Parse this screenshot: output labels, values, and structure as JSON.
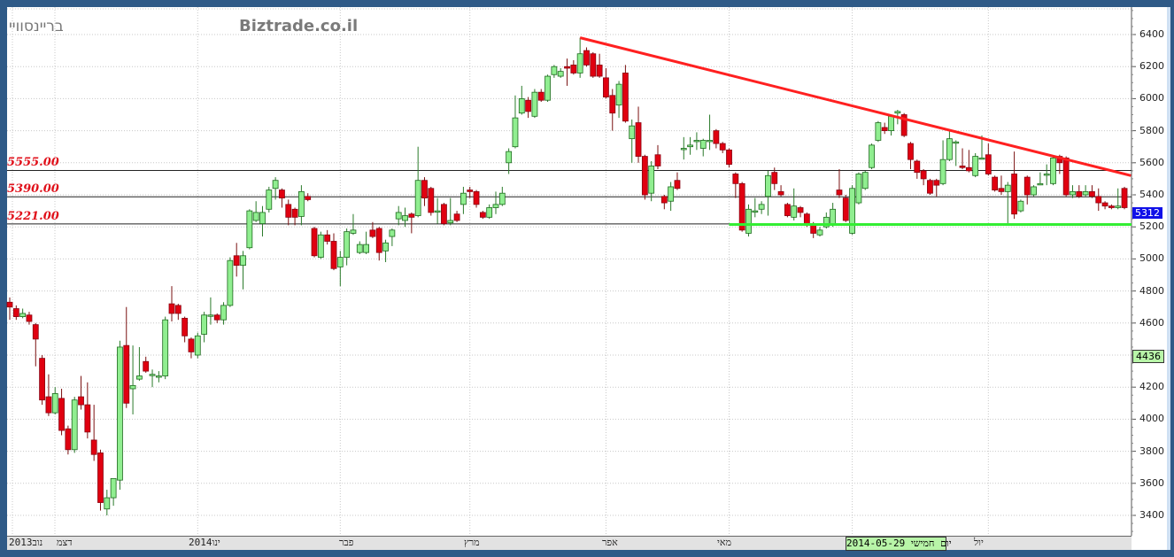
{
  "watermark": {
    "left": "בריינסוויי",
    "site": "Biztrade.co.il"
  },
  "colors": {
    "up": "#90ee90",
    "down": "#e00010",
    "trendline": "#ff2020",
    "support": "#33ee33",
    "frame": "#2f5a87"
  },
  "crosshair": {
    "price": "5312",
    "price2": "4436",
    "date": "יום חמישי 2014-05-29"
  },
  "chart_data": {
    "type": "candlestick",
    "ylim": [
      3300,
      6570
    ],
    "yticks": [
      3400,
      3600,
      3800,
      4000,
      4200,
      4400,
      4600,
      4800,
      5000,
      5200,
      5400,
      5600,
      5800,
      6000,
      6200,
      6400
    ],
    "ytick_labels": [
      "3400",
      "3600",
      "3800",
      "4000",
      "4200",
      "",
      "4600",
      "4800",
      "5000",
      "5200",
      "5400",
      "5600",
      "5800",
      "6000",
      "6200",
      "6400"
    ],
    "xtick_labels": [
      {
        "label": "2013נוב",
        "candle": 1
      },
      {
        "label": "דצמ",
        "candle": 6
      },
      {
        "label": "2014ינו",
        "candle": 30
      },
      {
        "label": "פבר",
        "candle": 53
      },
      {
        "label": "מרץ",
        "candle": 73
      },
      {
        "label": "אפר",
        "candle": 94
      },
      {
        "label": "מאי",
        "candle": 112
      },
      {
        "label": "יול",
        "candle": 152
      }
    ],
    "month_gridlines": [
      8,
      30,
      52,
      72,
      93,
      112,
      131,
      152
    ],
    "levels": [
      {
        "value": 5555,
        "label": "5555.00"
      },
      {
        "value": 5390,
        "label": "5390.00"
      },
      {
        "value": 5221,
        "label": "5221.00"
      }
    ],
    "trendline": {
      "from": {
        "candle": 89,
        "price": 6380
      },
      "to": {
        "candle": 174,
        "price": 5520
      }
    },
    "support_line": {
      "from": {
        "candle": 112,
        "price": 5215
      },
      "to": {
        "candle": 174,
        "price": 5215
      }
    },
    "ohlc": [
      [
        4730,
        4760,
        4620,
        4700
      ],
      [
        4690,
        4710,
        4620,
        4640
      ],
      [
        4640,
        4690,
        4630,
        4660
      ],
      [
        4650,
        4670,
        4590,
        4610
      ],
      [
        4590,
        4600,
        4330,
        4500
      ],
      [
        4380,
        4400,
        4090,
        4120
      ],
      [
        4140,
        4280,
        4020,
        4040
      ],
      [
        4040,
        4200,
        4030,
        4160
      ],
      [
        4130,
        4190,
        3900,
        3930
      ],
      [
        3940,
        3960,
        3780,
        3810
      ],
      [
        3810,
        4140,
        3790,
        4120
      ],
      [
        4140,
        4270,
        4060,
        4090
      ],
      [
        4090,
        4230,
        3880,
        3920
      ],
      [
        3870,
        4090,
        3740,
        3780
      ],
      [
        3790,
        3810,
        3430,
        3480
      ],
      [
        3440,
        3560,
        3400,
        3510
      ],
      [
        3510,
        3630,
        3460,
        3630
      ],
      [
        3620,
        4490,
        3560,
        4450
      ],
      [
        4460,
        4700,
        4070,
        4100
      ],
      [
        4190,
        4460,
        4030,
        4210
      ],
      [
        4250,
        4450,
        4240,
        4270
      ],
      [
        4360,
        4390,
        4290,
        4300
      ],
      [
        4280,
        4310,
        4200,
        4280
      ],
      [
        4270,
        4300,
        4230,
        4270
      ],
      [
        4270,
        4640,
        4250,
        4620
      ],
      [
        4720,
        4830,
        4610,
        4660
      ],
      [
        4710,
        4720,
        4620,
        4660
      ],
      [
        4630,
        4640,
        4480,
        4520
      ],
      [
        4500,
        4510,
        4380,
        4420
      ],
      [
        4400,
        4540,
        4380,
        4520
      ],
      [
        4530,
        4670,
        4480,
        4650
      ],
      [
        4650,
        4760,
        4590,
        4650
      ],
      [
        4650,
        4660,
        4600,
        4620
      ],
      [
        4620,
        4730,
        4590,
        4710
      ],
      [
        4710,
        5010,
        4700,
        4990
      ],
      [
        5020,
        5100,
        4890,
        4960
      ],
      [
        4960,
        5050,
        4810,
        5020
      ],
      [
        5070,
        5310,
        5060,
        5300
      ],
      [
        5240,
        5360,
        5230,
        5290
      ],
      [
        5220,
        5330,
        5140,
        5290
      ],
      [
        5310,
        5450,
        5290,
        5430
      ],
      [
        5440,
        5510,
        5370,
        5490
      ],
      [
        5430,
        5440,
        5320,
        5380
      ],
      [
        5340,
        5370,
        5210,
        5260
      ],
      [
        5310,
        5320,
        5210,
        5260
      ],
      [
        5265,
        5460,
        5210,
        5420
      ],
      [
        5390,
        5410,
        5360,
        5370
      ],
      [
        5190,
        5200,
        5010,
        5020
      ],
      [
        5010,
        5170,
        5000,
        5150
      ],
      [
        5150,
        5180,
        5090,
        5110
      ],
      [
        5110,
        5160,
        4930,
        4940
      ],
      [
        4950,
        5050,
        4830,
        5010
      ],
      [
        5010,
        5190,
        4960,
        5170
      ],
      [
        5160,
        5280,
        5150,
        5180
      ],
      [
        5040,
        5110,
        5030,
        5090
      ],
      [
        5040,
        5170,
        5030,
        5090
      ],
      [
        5180,
        5230,
        5130,
        5140
      ],
      [
        5190,
        5200,
        4990,
        5040
      ],
      [
        5050,
        5120,
        4980,
        5100
      ],
      [
        5140,
        5190,
        5080,
        5180
      ],
      [
        5250,
        5330,
        5210,
        5290
      ],
      [
        5240,
        5320,
        5200,
        5270
      ],
      [
        5280,
        5290,
        5160,
        5260
      ],
      [
        5270,
        5700,
        5260,
        5490
      ],
      [
        5490,
        5510,
        5330,
        5380
      ],
      [
        5440,
        5450,
        5270,
        5290
      ],
      [
        5300,
        5380,
        5220,
        5300
      ],
      [
        5340,
        5350,
        5210,
        5220
      ],
      [
        5225,
        5380,
        5210,
        5240
      ],
      [
        5280,
        5300,
        5230,
        5240
      ],
      [
        5340,
        5450,
        5280,
        5410
      ],
      [
        5430,
        5450,
        5380,
        5420
      ],
      [
        5420,
        5430,
        5320,
        5340
      ],
      [
        5290,
        5300,
        5250,
        5260
      ],
      [
        5260,
        5340,
        5250,
        5320
      ],
      [
        5320,
        5420,
        5280,
        5340
      ],
      [
        5340,
        5450,
        5330,
        5410
      ],
      [
        5600,
        5690,
        5530,
        5670
      ],
      [
        5700,
        6020,
        5690,
        5880
      ],
      [
        5910,
        6080,
        5900,
        6000
      ],
      [
        5990,
        6010,
        5880,
        5920
      ],
      [
        5890,
        6060,
        5880,
        6040
      ],
      [
        6040,
        6060,
        5980,
        5990
      ],
      [
        5990,
        6150,
        5980,
        6140
      ],
      [
        6150,
        6210,
        6130,
        6200
      ],
      [
        6140,
        6190,
        6130,
        6170
      ],
      [
        6200,
        6250,
        6080,
        6190
      ],
      [
        6210,
        6240,
        6150,
        6160
      ],
      [
        6160,
        6380,
        6130,
        6280
      ],
      [
        6300,
        6320,
        6200,
        6210
      ],
      [
        6280,
        6290,
        6130,
        6140
      ],
      [
        6210,
        6280,
        6130,
        6140
      ],
      [
        6130,
        6190,
        6000,
        6010
      ],
      [
        6020,
        6060,
        5800,
        5910
      ],
      [
        5960,
        6110,
        5880,
        6090
      ],
      [
        6160,
        6210,
        5850,
        5860
      ],
      [
        5750,
        5870,
        5600,
        5830
      ],
      [
        5850,
        5950,
        5600,
        5640
      ],
      [
        5640,
        5650,
        5370,
        5400
      ],
      [
        5410,
        5610,
        5360,
        5580
      ],
      [
        5650,
        5710,
        5560,
        5580
      ],
      [
        5390,
        5400,
        5310,
        5350
      ],
      [
        5360,
        5480,
        5300,
        5450
      ],
      [
        5490,
        5540,
        5430,
        5440
      ],
      [
        5690,
        5760,
        5620,
        5690
      ],
      [
        5700,
        5760,
        5650,
        5710
      ],
      [
        5740,
        5790,
        5680,
        5740
      ],
      [
        5690,
        5750,
        5640,
        5740
      ],
      [
        5740,
        5900,
        5680,
        5740
      ],
      [
        5800,
        5810,
        5690,
        5720
      ],
      [
        5720,
        5730,
        5660,
        5680
      ],
      [
        5680,
        5690,
        5570,
        5590
      ],
      [
        5530,
        5540,
        5380,
        5470
      ],
      [
        5470,
        5480,
        5170,
        5180
      ],
      [
        5160,
        5340,
        5140,
        5310
      ],
      [
        5300,
        5380,
        5260,
        5300
      ],
      [
        5310,
        5360,
        5280,
        5340
      ],
      [
        5390,
        5550,
        5270,
        5520
      ],
      [
        5540,
        5570,
        5430,
        5470
      ],
      [
        5420,
        5460,
        5390,
        5400
      ],
      [
        5340,
        5350,
        5260,
        5270
      ],
      [
        5260,
        5440,
        5240,
        5330
      ],
      [
        5320,
        5330,
        5260,
        5290
      ],
      [
        5280,
        5290,
        5200,
        5220
      ],
      [
        5220,
        5230,
        5130,
        5160
      ],
      [
        5150,
        5200,
        5140,
        5180
      ],
      [
        5200,
        5290,
        5190,
        5260
      ],
      [
        5210,
        5350,
        5200,
        5310
      ],
      [
        5430,
        5560,
        5380,
        5400
      ],
      [
        5380,
        5400,
        5230,
        5240
      ],
      [
        5160,
        5460,
        5150,
        5440
      ],
      [
        5350,
        5540,
        5340,
        5530
      ],
      [
        5440,
        5550,
        5430,
        5540
      ],
      [
        5570,
        5720,
        5560,
        5710
      ],
      [
        5740,
        5860,
        5730,
        5850
      ],
      [
        5820,
        5850,
        5780,
        5800
      ],
      [
        5800,
        5900,
        5770,
        5890
      ],
      [
        5910,
        5930,
        5840,
        5920
      ],
      [
        5900,
        5910,
        5760,
        5770
      ],
      [
        5720,
        5730,
        5560,
        5620
      ],
      [
        5610,
        5620,
        5500,
        5540
      ],
      [
        5550,
        5560,
        5460,
        5500
      ],
      [
        5490,
        5500,
        5400,
        5410
      ],
      [
        5490,
        5500,
        5390,
        5460
      ],
      [
        5470,
        5740,
        5460,
        5620
      ],
      [
        5620,
        5800,
        5610,
        5750
      ],
      [
        5730,
        5740,
        5580,
        5730
      ],
      [
        5580,
        5690,
        5560,
        5570
      ],
      [
        5570,
        5680,
        5540,
        5550
      ],
      [
        5520,
        5660,
        5510,
        5640
      ],
      [
        5630,
        5770,
        5620,
        5630
      ],
      [
        5650,
        5720,
        5520,
        5530
      ],
      [
        5510,
        5520,
        5420,
        5430
      ],
      [
        5440,
        5520,
        5400,
        5420
      ],
      [
        5420,
        5480,
        5220,
        5460
      ],
      [
        5530,
        5670,
        5250,
        5280
      ],
      [
        5300,
        5370,
        5290,
        5360
      ],
      [
        5510,
        5520,
        5340,
        5400
      ],
      [
        5400,
        5460,
        5390,
        5450
      ],
      [
        5470,
        5540,
        5460,
        5470
      ],
      [
        5530,
        5590,
        5460,
        5530
      ],
      [
        5470,
        5640,
        5460,
        5630
      ],
      [
        5640,
        5650,
        5530,
        5600
      ],
      [
        5630,
        5640,
        5390,
        5400
      ],
      [
        5400,
        5460,
        5380,
        5420
      ],
      [
        5420,
        5460,
        5380,
        5390
      ],
      [
        5400,
        5460,
        5390,
        5420
      ],
      [
        5420,
        5460,
        5380,
        5390
      ],
      [
        5390,
        5440,
        5300,
        5350
      ],
      [
        5350,
        5360,
        5310,
        5330
      ],
      [
        5330,
        5340,
        5310,
        5320
      ],
      [
        5320,
        5440,
        5310,
        5330
      ],
      [
        5440,
        5450,
        5310,
        5320
      ]
    ]
  }
}
